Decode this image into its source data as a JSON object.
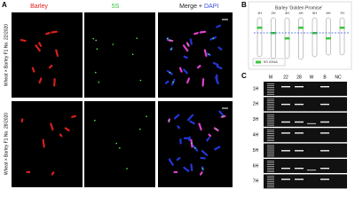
{
  "panel_a": {
    "label": "A",
    "barley_header": "Barley",
    "s5_header": "5S",
    "merge_header": "Merge +",
    "dapi_header": "DAPI",
    "rows": [
      "Wheat × Barley F1 No. 22/2020",
      "Wheat × Barley F1 No. 28/2020"
    ]
  },
  "panel_b": {
    "label": "B",
    "title": "Barley 'Golden Promise'",
    "chromosomes": [
      "1H",
      "2H",
      "3H",
      "4H",
      "5H",
      "6H",
      "7H"
    ],
    "legend": "5S rDNA"
  },
  "panel_c": {
    "label": "C",
    "lanes": [
      "M",
      "22",
      "28",
      "W",
      "B",
      "NC"
    ],
    "rows": [
      "1H",
      "2H",
      "3H",
      "4H",
      "5H",
      "6H",
      "7H"
    ]
  }
}
